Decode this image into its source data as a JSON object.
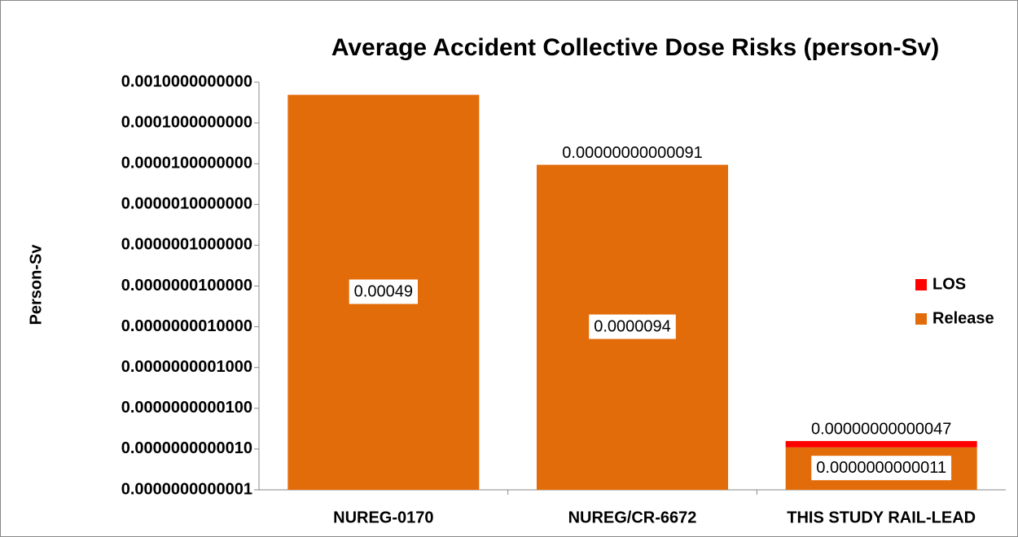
{
  "chart_data": {
    "type": "stacked_bar",
    "title": "Average Accident Collective Dose Risks (person-Sv)",
    "y_label": "Person-Sv",
    "log_scale": true,
    "legend_position": "right",
    "categories": [
      "NUREG-0170",
      "NUREG/CR-6672",
      "THIS STUDY RAIL-LEAD"
    ],
    "series": [
      {
        "name": "Release",
        "color": "#e36c0a",
        "values": [
          0.00049,
          9.4e-06,
          1.1e-12
        ],
        "value_labels": [
          "0.00049",
          "0.0000094",
          "0.0000000000011"
        ]
      },
      {
        "name": "LOS",
        "color": "#ff0000",
        "values": [
          null,
          9.1e-13,
          4.7e-13
        ],
        "value_labels": [
          null,
          "0.00000000000091",
          "0.00000000000047"
        ]
      }
    ],
    "ylim": [
      1e-13,
      0.001
    ],
    "yticks": [
      {
        "value": 1e-13,
        "label": "0.0000000000001"
      },
      {
        "value": 1e-12,
        "label": "0.0000000000010"
      },
      {
        "value": 1e-11,
        "label": "0.0000000000100"
      },
      {
        "value": 1e-10,
        "label": "0.0000000001000"
      },
      {
        "value": 1e-09,
        "label": "0.0000000010000"
      },
      {
        "value": 1e-08,
        "label": "0.0000000100000"
      },
      {
        "value": 1e-07,
        "label": "0.0000001000000"
      },
      {
        "value": 1e-06,
        "label": "0.0000010000000"
      },
      {
        "value": 1e-05,
        "label": "0.0000100000000"
      },
      {
        "value": 0.0001,
        "label": "0.0001000000000"
      },
      {
        "value": 0.001,
        "label": "0.0010000000000"
      }
    ]
  }
}
